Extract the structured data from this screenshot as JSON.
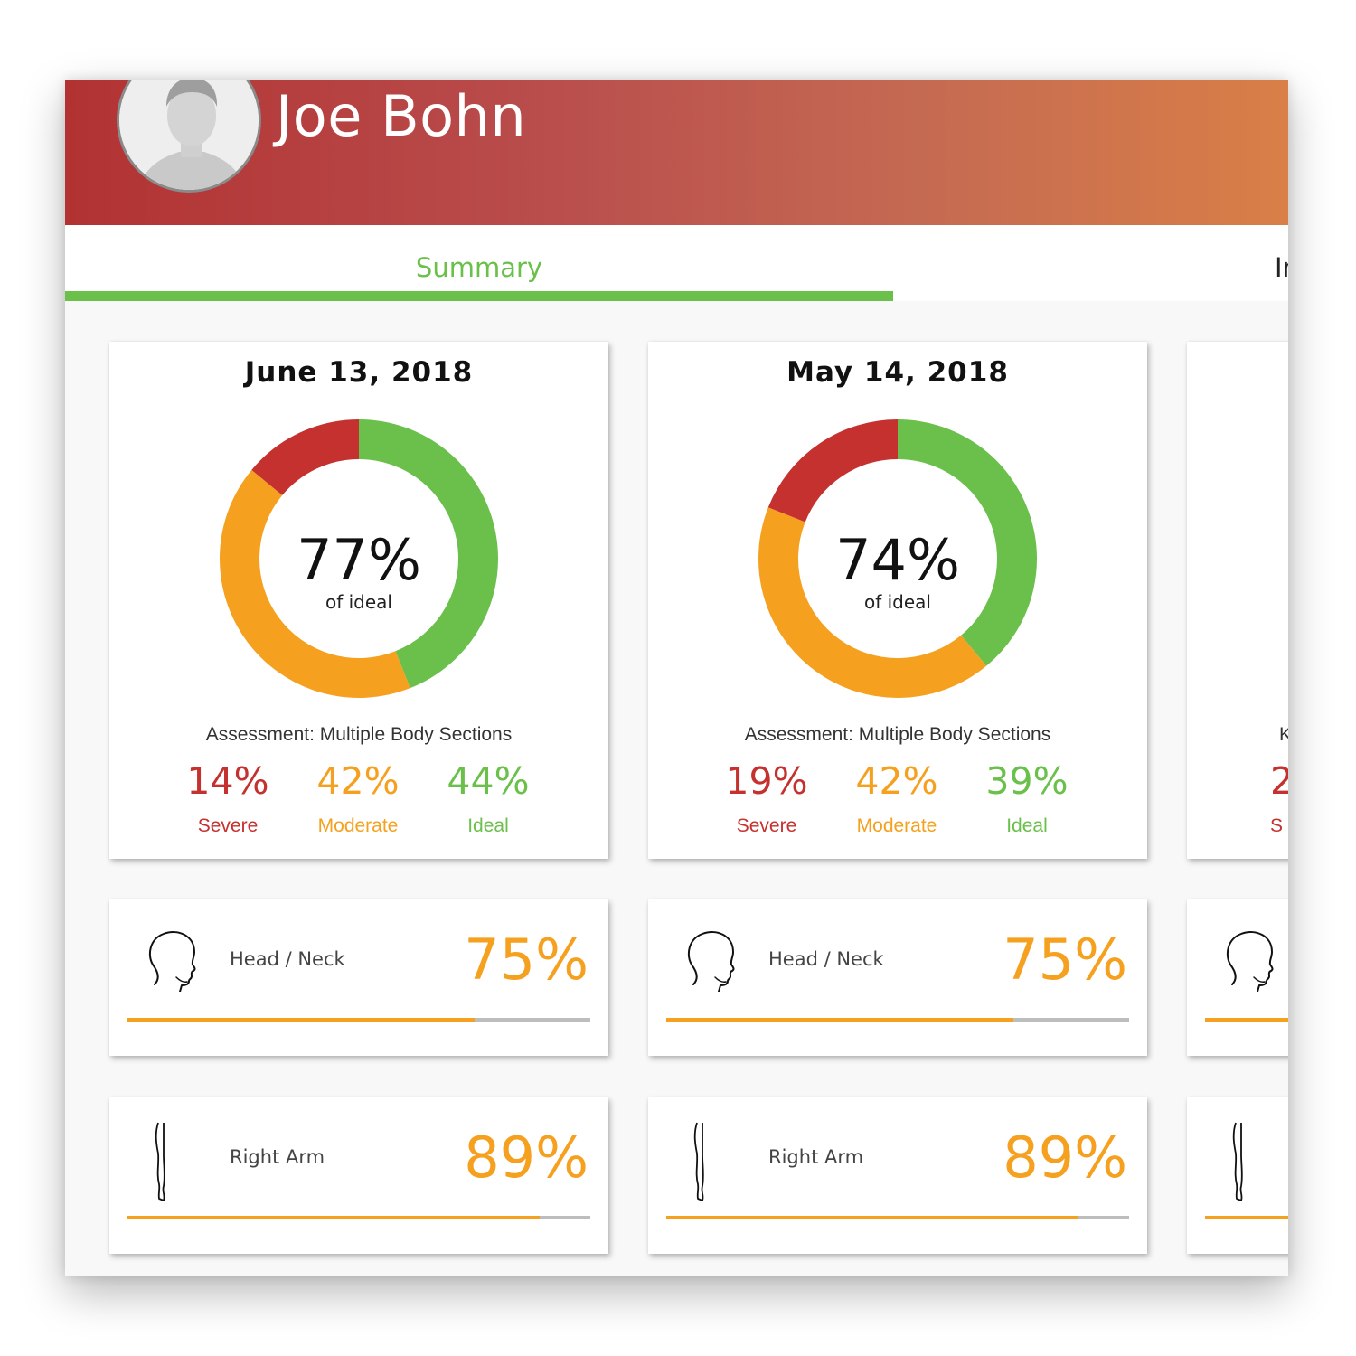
{
  "user": {
    "name": "Joe Bohn"
  },
  "tabs": [
    {
      "label": "Summary",
      "active": true
    },
    {
      "label": "In",
      "active": false
    }
  ],
  "colors": {
    "severe": "#c4312e",
    "moderate": "#f5a11f",
    "ideal": "#6ac04b",
    "track": "#bdbdbd"
  },
  "assessments": [
    {
      "date": "June 13, 2018",
      "score": "77%",
      "score_caption": "of ideal",
      "assessment_label": "Assessment: Multiple Body Sections",
      "breakdown": [
        {
          "value": "14%",
          "label": "Severe",
          "percent": 14
        },
        {
          "value": "42%",
          "label": "Moderate",
          "percent": 42
        },
        {
          "value": "44%",
          "label": "Ideal",
          "percent": 44
        }
      ],
      "sections": [
        {
          "name": "Head / Neck",
          "value": "75%",
          "percent": 75,
          "icon": "head-icon"
        },
        {
          "name": "Right Arm",
          "value": "89%",
          "percent": 89,
          "icon": "arm-icon"
        }
      ]
    },
    {
      "date": "May 14, 2018",
      "score": "74%",
      "score_caption": "of ideal",
      "assessment_label": "Assessment: Multiple Body Sections",
      "breakdown": [
        {
          "value": "19%",
          "label": "Severe",
          "percent": 19
        },
        {
          "value": "42%",
          "label": "Moderate",
          "percent": 42
        },
        {
          "value": "39%",
          "label": "Ideal",
          "percent": 39
        }
      ],
      "sections": [
        {
          "name": "Head / Neck",
          "value": "75%",
          "percent": 75,
          "icon": "head-icon"
        },
        {
          "name": "Right Arm",
          "value": "89%",
          "percent": 89,
          "icon": "arm-icon"
        }
      ]
    },
    {
      "assessment_label_partial": "K",
      "breakdown_partial": {
        "value": "2",
        "label": "S"
      },
      "sections_partial": [
        {
          "icon": "head-icon"
        },
        {
          "icon": "arm-icon"
        }
      ]
    }
  ]
}
